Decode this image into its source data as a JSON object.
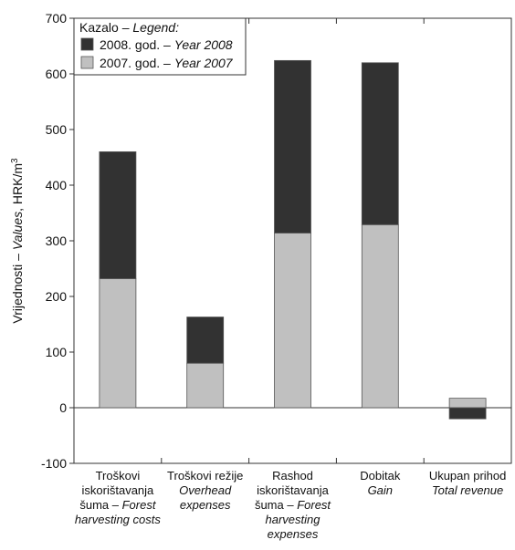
{
  "chart_data": {
    "type": "bar",
    "stacked": true,
    "title": "",
    "xlabel": "",
    "ylabel": {
      "normal": "Vrijednosti – ",
      "italic": "Values",
      "tail": ", HRK/m",
      "superscript": "3"
    },
    "ylim": [
      -100,
      700
    ],
    "yticks": [
      -100,
      0,
      100,
      200,
      300,
      400,
      500,
      600,
      700
    ],
    "grid": false,
    "legend": {
      "placement": "top-left",
      "title_normal": "Kazalo – ",
      "title_italic": "Legend:"
    },
    "categories": [
      {
        "lines": [
          {
            "normal": "Troškovi",
            "italic": ""
          },
          {
            "normal": "iskorištavanja",
            "italic": ""
          },
          {
            "normal": "šuma – ",
            "italic": "Forest"
          },
          {
            "normal": "",
            "italic": "harvesting costs"
          }
        ]
      },
      {
        "lines": [
          {
            "normal": "Troškovi režije",
            "italic": ""
          },
          {
            "normal": "",
            "italic": "Overhead"
          },
          {
            "normal": "",
            "italic": "expenses"
          }
        ]
      },
      {
        "lines": [
          {
            "normal": "Rashod",
            "italic": ""
          },
          {
            "normal": "iskorištavanja",
            "italic": ""
          },
          {
            "normal": "šuma – ",
            "italic": "Forest"
          },
          {
            "normal": "",
            "italic": "harvesting"
          },
          {
            "normal": "",
            "italic": "expenses"
          }
        ]
      },
      {
        "lines": [
          {
            "normal": "Dobitak",
            "italic": ""
          },
          {
            "normal": "",
            "italic": "Gain"
          }
        ]
      },
      {
        "lines": [
          {
            "normal": "Ukupan prihod",
            "italic": ""
          },
          {
            "normal": "",
            "italic": "Total revenue"
          }
        ]
      }
    ],
    "series": [
      {
        "name_normal": "2007. god. – ",
        "name_italic": "Year 2007",
        "color": "#c0c0c0",
        "values": [
          232,
          80,
          314,
          329,
          17
        ]
      },
      {
        "name_normal": "2008. god. – ",
        "name_italic": "Year 2008",
        "color": "#323232",
        "values": [
          228,
          83,
          310,
          291,
          -20
        ]
      }
    ]
  }
}
